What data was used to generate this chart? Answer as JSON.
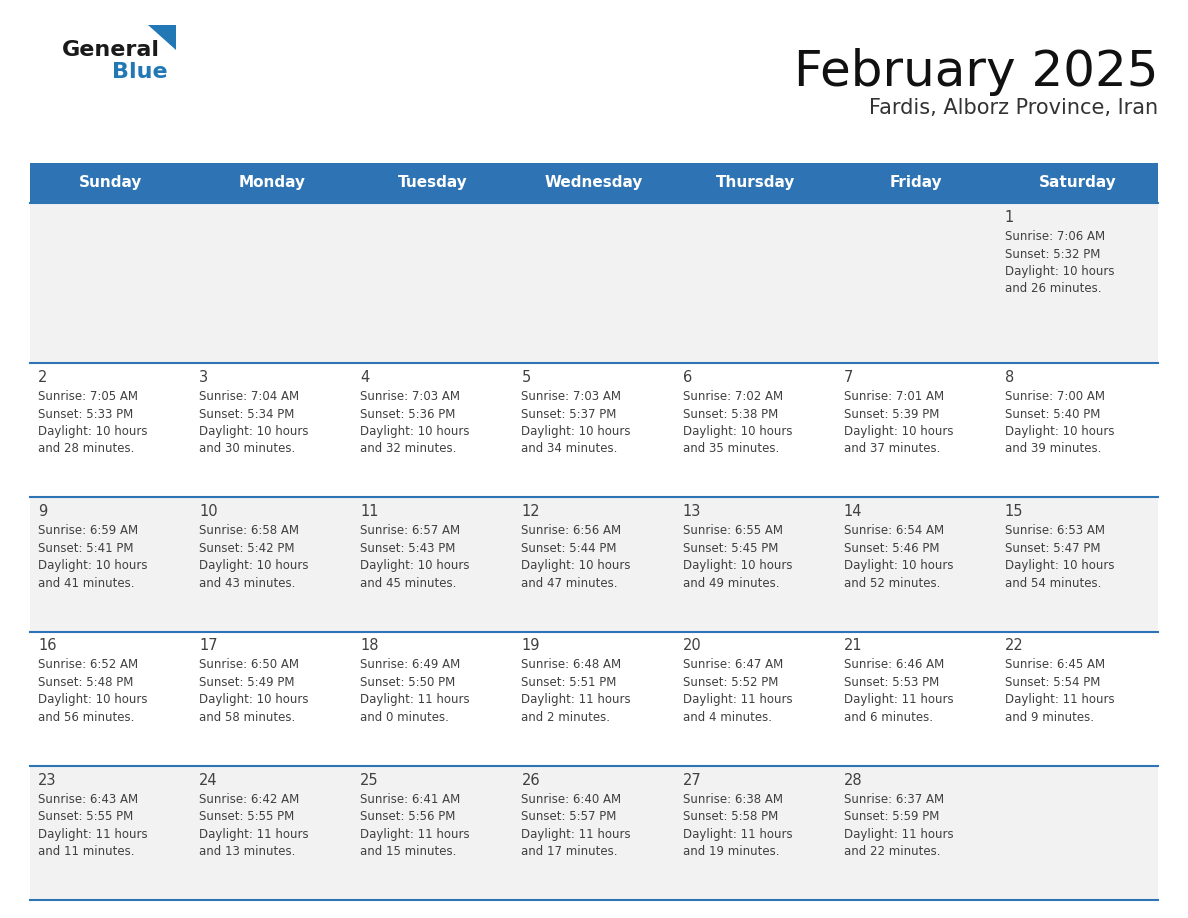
{
  "title": "February 2025",
  "subtitle": "Fardis, Alborz Province, Iran",
  "days_of_week": [
    "Sunday",
    "Monday",
    "Tuesday",
    "Wednesday",
    "Thursday",
    "Friday",
    "Saturday"
  ],
  "header_bg": "#2E74B5",
  "header_text": "#FFFFFF",
  "cell_bg_odd": "#F2F2F2",
  "cell_bg_even": "#FFFFFF",
  "divider_color": "#2E74B5",
  "text_color": "#404040",
  "day_num_color": "#404040",
  "logo_dark": "#1a1a1a",
  "logo_blue": "#2278B5",
  "calendar_data": [
    [
      null,
      null,
      null,
      null,
      null,
      null,
      {
        "day": "1",
        "sunrise": "7:06 AM",
        "sunset": "5:32 PM",
        "daylight_h": "10 hours",
        "daylight_m": "and 26 minutes."
      }
    ],
    [
      {
        "day": "2",
        "sunrise": "7:05 AM",
        "sunset": "5:33 PM",
        "daylight_h": "10 hours",
        "daylight_m": "and 28 minutes."
      },
      {
        "day": "3",
        "sunrise": "7:04 AM",
        "sunset": "5:34 PM",
        "daylight_h": "10 hours",
        "daylight_m": "and 30 minutes."
      },
      {
        "day": "4",
        "sunrise": "7:03 AM",
        "sunset": "5:36 PM",
        "daylight_h": "10 hours",
        "daylight_m": "and 32 minutes."
      },
      {
        "day": "5",
        "sunrise": "7:03 AM",
        "sunset": "5:37 PM",
        "daylight_h": "10 hours",
        "daylight_m": "and 34 minutes."
      },
      {
        "day": "6",
        "sunrise": "7:02 AM",
        "sunset": "5:38 PM",
        "daylight_h": "10 hours",
        "daylight_m": "and 35 minutes."
      },
      {
        "day": "7",
        "sunrise": "7:01 AM",
        "sunset": "5:39 PM",
        "daylight_h": "10 hours",
        "daylight_m": "and 37 minutes."
      },
      {
        "day": "8",
        "sunrise": "7:00 AM",
        "sunset": "5:40 PM",
        "daylight_h": "10 hours",
        "daylight_m": "and 39 minutes."
      }
    ],
    [
      {
        "day": "9",
        "sunrise": "6:59 AM",
        "sunset": "5:41 PM",
        "daylight_h": "10 hours",
        "daylight_m": "and 41 minutes."
      },
      {
        "day": "10",
        "sunrise": "6:58 AM",
        "sunset": "5:42 PM",
        "daylight_h": "10 hours",
        "daylight_m": "and 43 minutes."
      },
      {
        "day": "11",
        "sunrise": "6:57 AM",
        "sunset": "5:43 PM",
        "daylight_h": "10 hours",
        "daylight_m": "and 45 minutes."
      },
      {
        "day": "12",
        "sunrise": "6:56 AM",
        "sunset": "5:44 PM",
        "daylight_h": "10 hours",
        "daylight_m": "and 47 minutes."
      },
      {
        "day": "13",
        "sunrise": "6:55 AM",
        "sunset": "5:45 PM",
        "daylight_h": "10 hours",
        "daylight_m": "and 49 minutes."
      },
      {
        "day": "14",
        "sunrise": "6:54 AM",
        "sunset": "5:46 PM",
        "daylight_h": "10 hours",
        "daylight_m": "and 52 minutes."
      },
      {
        "day": "15",
        "sunrise": "6:53 AM",
        "sunset": "5:47 PM",
        "daylight_h": "10 hours",
        "daylight_m": "and 54 minutes."
      }
    ],
    [
      {
        "day": "16",
        "sunrise": "6:52 AM",
        "sunset": "5:48 PM",
        "daylight_h": "10 hours",
        "daylight_m": "and 56 minutes."
      },
      {
        "day": "17",
        "sunrise": "6:50 AM",
        "sunset": "5:49 PM",
        "daylight_h": "10 hours",
        "daylight_m": "and 58 minutes."
      },
      {
        "day": "18",
        "sunrise": "6:49 AM",
        "sunset": "5:50 PM",
        "daylight_h": "11 hours",
        "daylight_m": "and 0 minutes."
      },
      {
        "day": "19",
        "sunrise": "6:48 AM",
        "sunset": "5:51 PM",
        "daylight_h": "11 hours",
        "daylight_m": "and 2 minutes."
      },
      {
        "day": "20",
        "sunrise": "6:47 AM",
        "sunset": "5:52 PM",
        "daylight_h": "11 hours",
        "daylight_m": "and 4 minutes."
      },
      {
        "day": "21",
        "sunrise": "6:46 AM",
        "sunset": "5:53 PM",
        "daylight_h": "11 hours",
        "daylight_m": "and 6 minutes."
      },
      {
        "day": "22",
        "sunrise": "6:45 AM",
        "sunset": "5:54 PM",
        "daylight_h": "11 hours",
        "daylight_m": "and 9 minutes."
      }
    ],
    [
      {
        "day": "23",
        "sunrise": "6:43 AM",
        "sunset": "5:55 PM",
        "daylight_h": "11 hours",
        "daylight_m": "and 11 minutes."
      },
      {
        "day": "24",
        "sunrise": "6:42 AM",
        "sunset": "5:55 PM",
        "daylight_h": "11 hours",
        "daylight_m": "and 13 minutes."
      },
      {
        "day": "25",
        "sunrise": "6:41 AM",
        "sunset": "5:56 PM",
        "daylight_h": "11 hours",
        "daylight_m": "and 15 minutes."
      },
      {
        "day": "26",
        "sunrise": "6:40 AM",
        "sunset": "5:57 PM",
        "daylight_h": "11 hours",
        "daylight_m": "and 17 minutes."
      },
      {
        "day": "27",
        "sunrise": "6:38 AM",
        "sunset": "5:58 PM",
        "daylight_h": "11 hours",
        "daylight_m": "and 19 minutes."
      },
      {
        "day": "28",
        "sunrise": "6:37 AM",
        "sunset": "5:59 PM",
        "daylight_h": "11 hours",
        "daylight_m": "and 22 minutes."
      },
      null
    ]
  ]
}
